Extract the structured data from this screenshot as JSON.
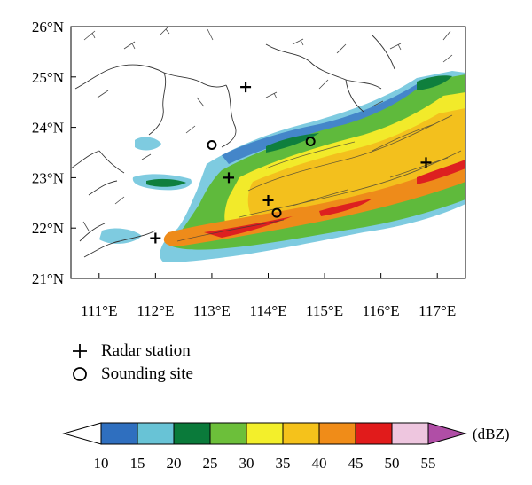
{
  "map": {
    "lat_labels": [
      "26°N",
      "25°N",
      "24°N",
      "23°N",
      "22°N",
      "21°N"
    ],
    "lon_labels": [
      "111°E",
      "112°E",
      "113°E",
      "114°E",
      "115°E",
      "116°E",
      "117°E"
    ],
    "extent": {
      "lon_min": 110.5,
      "lon_max": 117.5,
      "lat_min": 21,
      "lat_max": 26
    },
    "colors": {
      "coast": "#333333",
      "station": "#000000"
    }
  },
  "stations": {
    "radar": [
      {
        "lon": 113.6,
        "lat": 24.8
      },
      {
        "lon": 113.3,
        "lat": 23.0
      },
      {
        "lon": 114.0,
        "lat": 22.55
      },
      {
        "lon": 112.0,
        "lat": 21.8
      },
      {
        "lon": 116.8,
        "lat": 23.3
      }
    ],
    "sounding": [
      {
        "lon": 113.0,
        "lat": 23.65
      },
      {
        "lon": 114.75,
        "lat": 23.72
      },
      {
        "lon": 114.15,
        "lat": 22.3
      }
    ]
  },
  "legend": {
    "radar_label": "Radar station",
    "sounding_label": "Sounding site"
  },
  "colorbar": {
    "unit": "(dBZ)",
    "ticks": [
      "10",
      "15",
      "20",
      "25",
      "30",
      "35",
      "40",
      "45",
      "50",
      "55"
    ],
    "colors": [
      "#2f6fbf",
      "#68c3d6",
      "#0a7a3a",
      "#6cbf3a",
      "#f3ef2b",
      "#f5c21b",
      "#f08c18",
      "#e11b1b",
      "#eec6df",
      "#b04ea6"
    ],
    "low_extend_color": "#ffffff"
  }
}
